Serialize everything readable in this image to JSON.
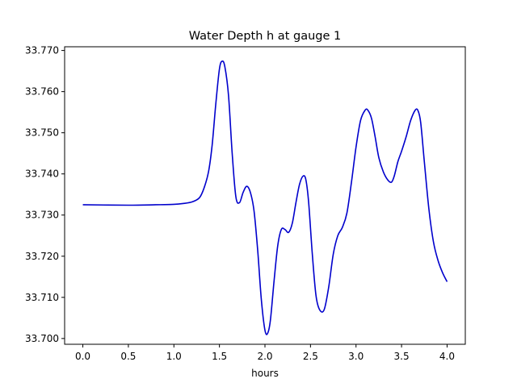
{
  "chart_data": {
    "type": "line",
    "title": "Water Depth h at gauge 1",
    "xlabel": "hours",
    "ylabel": "",
    "xlim": [
      -0.2,
      4.2
    ],
    "ylim": [
      33.6986,
      33.7709
    ],
    "x_ticks": [
      0.0,
      0.5,
      1.0,
      1.5,
      2.0,
      2.5,
      3.0,
      3.5,
      4.0
    ],
    "x_tick_labels": [
      "0.0",
      "0.5",
      "1.0",
      "1.5",
      "2.0",
      "2.5",
      "3.0",
      "3.5",
      "4.0"
    ],
    "y_ticks": [
      33.7,
      33.71,
      33.72,
      33.73,
      33.74,
      33.75,
      33.76,
      33.77
    ],
    "y_tick_labels": [
      "33.700",
      "33.710",
      "33.720",
      "33.730",
      "33.740",
      "33.750",
      "33.760",
      "33.770"
    ],
    "grid": false,
    "color": "#0000cc",
    "series": [
      {
        "x": [
          0.0,
          0.5,
          0.8,
          1.0,
          1.1,
          1.2,
          1.28,
          1.33,
          1.38,
          1.42,
          1.46,
          1.5,
          1.53,
          1.56,
          1.6,
          1.64,
          1.68,
          1.72,
          1.76,
          1.8,
          1.84,
          1.88,
          1.92,
          1.96,
          2.0,
          2.03,
          2.06,
          2.1,
          2.14,
          2.18,
          2.22,
          2.26,
          2.3,
          2.34,
          2.38,
          2.42,
          2.45,
          2.48,
          2.52,
          2.56,
          2.6,
          2.65,
          2.7,
          2.75,
          2.8,
          2.85,
          2.9,
          2.95,
          3.0,
          3.05,
          3.1,
          3.13,
          3.17,
          3.21,
          3.25,
          3.3,
          3.35,
          3.39,
          3.42,
          3.46,
          3.5,
          3.55,
          3.6,
          3.65,
          3.68,
          3.71,
          3.75,
          3.8,
          3.85,
          3.9,
          3.95,
          4.0
        ],
        "y": [
          33.7325,
          33.7324,
          33.7325,
          33.7326,
          33.7328,
          33.7332,
          33.7342,
          33.7365,
          33.7405,
          33.747,
          33.757,
          33.7655,
          33.7674,
          33.766,
          33.759,
          33.745,
          33.7345,
          33.733,
          33.7355,
          33.737,
          33.7355,
          33.731,
          33.7215,
          33.7095,
          33.702,
          33.7013,
          33.7045,
          33.714,
          33.7225,
          33.7265,
          33.7265,
          33.7258,
          33.728,
          33.733,
          33.7375,
          33.7395,
          33.7385,
          33.733,
          33.7205,
          33.7105,
          33.707,
          33.707,
          33.7125,
          33.7205,
          33.725,
          33.727,
          33.7305,
          33.738,
          33.7465,
          33.753,
          33.7555,
          33.7555,
          33.7535,
          33.749,
          33.744,
          33.7405,
          33.7385,
          33.738,
          33.7395,
          33.743,
          33.7455,
          33.749,
          33.753,
          33.7555,
          33.7554,
          33.7525,
          33.743,
          33.7315,
          33.7235,
          33.719,
          33.716,
          33.7138
        ]
      }
    ]
  }
}
